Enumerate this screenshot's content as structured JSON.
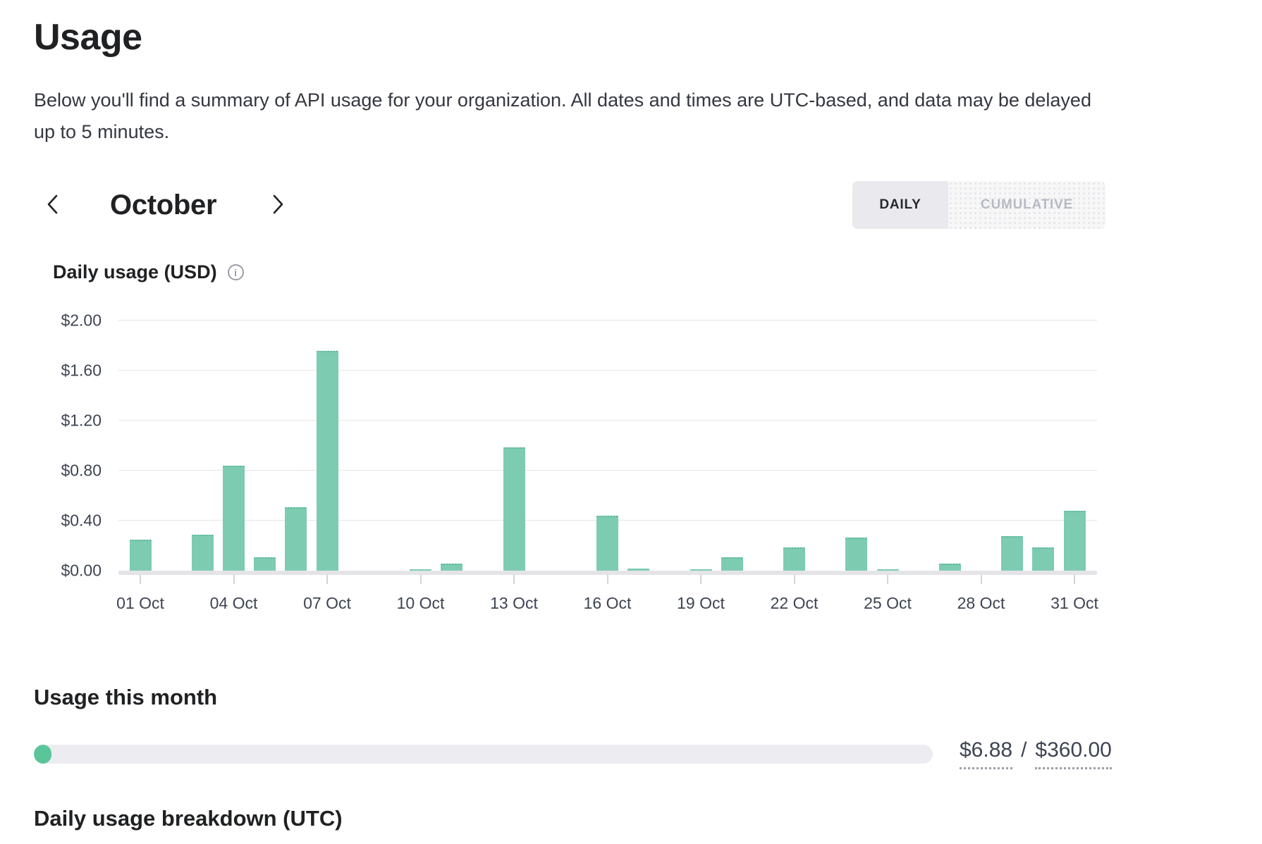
{
  "header": {
    "title": "Usage",
    "description": "Below you'll find a summary of API usage for your organization. All dates and times are UTC-based, and data may be delayed up to 5 minutes."
  },
  "month_nav": {
    "prev_icon": "chevron-left",
    "current_month": "October",
    "next_icon": "chevron-right"
  },
  "view_toggle": {
    "options": [
      {
        "label": "DAILY",
        "selected": true
      },
      {
        "label": "CUMULATIVE",
        "selected": false
      }
    ]
  },
  "chart_header": {
    "title": "Daily usage (USD)",
    "info_icon": "info-circle-icon"
  },
  "chart_data": {
    "type": "bar",
    "title": "Daily usage (USD)",
    "xlabel": "",
    "ylabel": "USD",
    "days_in_month": 31,
    "values": [
      0.25,
      0,
      0.29,
      0.84,
      0.11,
      0.51,
      1.76,
      0,
      0,
      0.01,
      0.06,
      0,
      0.99,
      0,
      0,
      0.44,
      0.02,
      0,
      0.01,
      0.11,
      0,
      0.19,
      0,
      0.27,
      0.01,
      0,
      0.06,
      0,
      0.28,
      0.19,
      0.48
    ],
    "x_tick_positions": [
      1,
      4,
      7,
      10,
      13,
      16,
      19,
      22,
      25,
      28,
      31
    ],
    "x_tick_labels": [
      "01 Oct",
      "04 Oct",
      "07 Oct",
      "10 Oct",
      "13 Oct",
      "16 Oct",
      "19 Oct",
      "22 Oct",
      "25 Oct",
      "28 Oct",
      "31 Oct"
    ],
    "y_tick_values": [
      0,
      0.4,
      0.8,
      1.2,
      1.6,
      2.0
    ],
    "y_tick_labels": [
      "$0.00",
      "$0.40",
      "$0.80",
      "$1.20",
      "$1.60",
      "$2.00"
    ],
    "ylim": [
      0,
      2.0
    ],
    "grid": true,
    "legend_position": "none",
    "bar_color": "#7dcbb1"
  },
  "usage_this_month": {
    "heading": "Usage this month",
    "used": "$6.88",
    "separator": "/",
    "limit": "$360.00",
    "percent_used": 1.9
  },
  "next_section": {
    "heading": "Daily usage breakdown (UTC)"
  },
  "colors": {
    "bar": "#7dcbb1",
    "bar_top_edge": "#5fb998",
    "progress_fill": "#5bc59a",
    "progress_track": "#ececf1",
    "grid_line": "#e5e5e5",
    "axis_text": "#3e4453",
    "muted_text": "#b7bac2"
  }
}
